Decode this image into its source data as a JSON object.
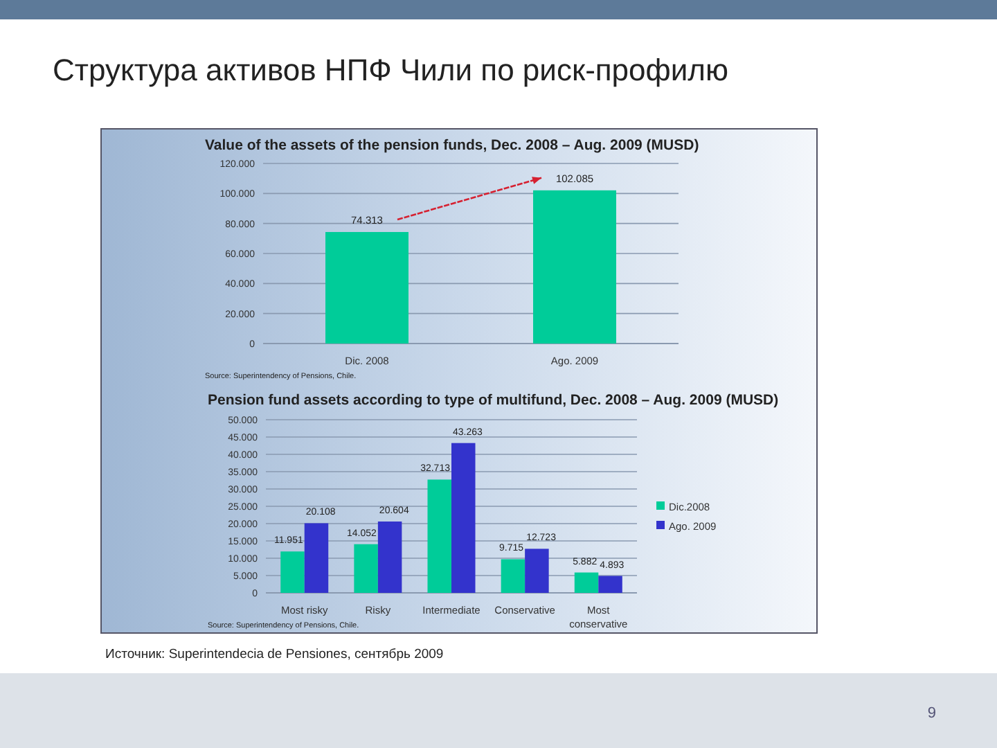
{
  "chart_data": [
    {
      "type": "other",
      "title": "Структура активов НПФ Чили по риск-профилю",
      "annotations": [
        "Источник: Superintendecia de Pensiones, сентябрь 2009",
        "9"
      ]
    },
    {
      "type": "bar",
      "title": "Value of the assets of the pension funds, Dec. 2008 – Aug. 2009  (MUSD)",
      "categories": [
        "Dic. 2008",
        "Ago. 2009"
      ],
      "values": [
        74313,
        102085
      ],
      "color": "#00cc99",
      "value_labels": [
        "74.313",
        "102.085"
      ],
      "ylim": [
        0,
        120000
      ],
      "yticks": [
        {
          "value": 0,
          "label": "0"
        },
        {
          "value": 20000,
          "label": "20.000"
        },
        {
          "value": 40000,
          "label": "40.000"
        },
        {
          "value": 60000,
          "label": "60.000"
        },
        {
          "value": 80000,
          "label": "80.000"
        },
        {
          "value": 100000,
          "label": "100.000"
        },
        {
          "value": 120000,
          "label": "120.000"
        }
      ],
      "grid": "y",
      "annotations": [
        "Source: Superintendency of Pensions, Chile."
      ]
    },
    {
      "type": "bar",
      "title": "Pension fund assets according to type of multifund, Dec. 2008 – Aug. 2009 (MUSD)",
      "categories": [
        "Most risky",
        "Risky",
        "Intermediate",
        "Conservative",
        "Most conservative"
      ],
      "series": [
        {
          "name": "Dic.2008",
          "color": "#00cc99",
          "values": [
            11951,
            14052,
            32713,
            9715,
            5882
          ],
          "value_labels": [
            "11.951",
            "14.052",
            "32.713",
            "9.715",
            "5.882"
          ]
        },
        {
          "name": "Ago. 2009",
          "color": "#3333cc",
          "values": [
            20108,
            20604,
            43263,
            12723,
            4893
          ],
          "value_labels": [
            "20.108",
            "20.604",
            "43.263",
            "12.723",
            "4.893"
          ]
        }
      ],
      "ylim": [
        0,
        50000
      ],
      "yticks": [
        {
          "value": 0,
          "label": "0"
        },
        {
          "value": 5000,
          "label": "5.000"
        },
        {
          "value": 10000,
          "label": "10.000"
        },
        {
          "value": 15000,
          "label": "15.000"
        },
        {
          "value": 20000,
          "label": "20.000"
        },
        {
          "value": 25000,
          "label": "25.000"
        },
        {
          "value": 30000,
          "label": "30.000"
        },
        {
          "value": 35000,
          "label": "35.000"
        },
        {
          "value": 40000,
          "label": "40.000"
        },
        {
          "value": 45000,
          "label": "45.000"
        },
        {
          "value": 50000,
          "label": "50.000"
        }
      ],
      "grid": "y",
      "legend": "right",
      "annotations": [
        "Source: Superintendency of Pensions, Chile."
      ]
    }
  ]
}
